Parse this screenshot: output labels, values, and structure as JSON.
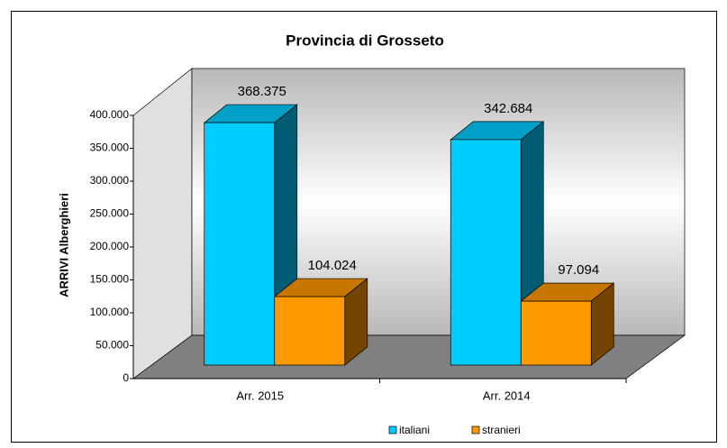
{
  "chart_data": {
    "type": "bar3d",
    "title": "Provincia di Grosseto",
    "y_label": "ARRIVI Alberghieri",
    "categories": [
      "Arr. 2015",
      "Arr. 2014"
    ],
    "series": [
      {
        "name": "italiani",
        "color": "#00ccff",
        "values": [
          368375,
          342684
        ],
        "value_labels": [
          "368.375",
          "342.684"
        ]
      },
      {
        "name": "stranieri",
        "color": "#ff9900",
        "values": [
          104024,
          97094
        ],
        "value_labels": [
          "104.024",
          "97.094"
        ]
      }
    ],
    "ylim": [
      0,
      400000
    ],
    "yticks": [
      0,
      {
        "value": 50000,
        "label": "50.000"
      },
      {
        "value": 100000,
        "label": "100.000"
      },
      {
        "value": 150000,
        "label": "150.000"
      },
      {
        "value": 200000,
        "label": "200.000"
      },
      {
        "value": 250000,
        "label": "250.000"
      },
      {
        "value": 300000,
        "label": "300.000"
      },
      {
        "value": 350000,
        "label": "350.000"
      },
      {
        "value": 400000,
        "label": "400.000"
      }
    ],
    "legend": "bottom"
  }
}
